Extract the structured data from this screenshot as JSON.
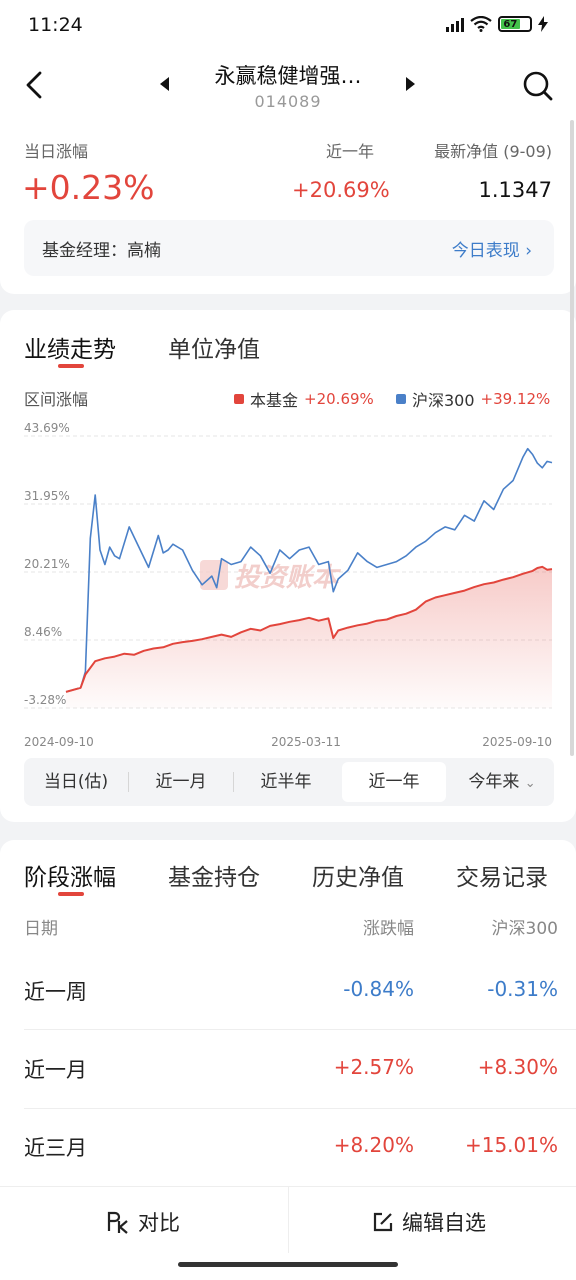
{
  "status_bar": {
    "time": "11:24",
    "battery": "67"
  },
  "header": {
    "title": "永赢稳健增强…",
    "code": "014089"
  },
  "summary": {
    "daily_change_label": "当日涨幅",
    "daily_change": "+0.23%",
    "year_label": "近一年",
    "year_change": "+20.69%",
    "nav_label": "最新净值 (9-09)",
    "nav": "1.1347",
    "manager": "基金经理：高楠",
    "today_link": "今日表现"
  },
  "chart_section": {
    "tabs": [
      "业绩走势",
      "单位净值"
    ],
    "subtitle": "区间涨幅",
    "watermark": "投资账本",
    "range_buttons": [
      "当日(估)",
      "近一月",
      "近半年",
      "近一年",
      "今年来"
    ],
    "selected_range": "近一年"
  },
  "chart_data": {
    "type": "line",
    "y_ticks": [
      "43.69%",
      "31.95%",
      "20.21%",
      "8.46%",
      "-3.28%"
    ],
    "x_ticks": [
      "2024-09-10",
      "2025-03-11",
      "2025-09-10"
    ],
    "ylim": [
      -3.28,
      43.69
    ],
    "colors": {
      "fund": "#e2453c",
      "index": "#4a80c8"
    },
    "series": [
      {
        "name": "本基金",
        "label_value": "+20.69%",
        "x": [
          0,
          3,
          4,
          6,
          8,
          10,
          12,
          14,
          16,
          18,
          20,
          22,
          24,
          26,
          28,
          30,
          32,
          34,
          36,
          38,
          40,
          42,
          44,
          46,
          48,
          50,
          52,
          54,
          55,
          56,
          58,
          60,
          62,
          64,
          66,
          68,
          70,
          72,
          74,
          76,
          78,
          80,
          82,
          84,
          86,
          88,
          90,
          92,
          94,
          96,
          97,
          98,
          99,
          100
        ],
        "y": [
          -0.5,
          0.2,
          2.5,
          4.8,
          5.3,
          5.6,
          6.1,
          5.9,
          6.6,
          7.0,
          7.2,
          7.8,
          8.1,
          8.3,
          8.6,
          9.0,
          9.4,
          9.0,
          9.8,
          10.4,
          10.1,
          10.9,
          11.2,
          11.6,
          11.9,
          12.3,
          11.8,
          12.2,
          8.8,
          10.1,
          10.6,
          11.0,
          11.3,
          11.8,
          12.0,
          12.6,
          13.0,
          13.7,
          15.1,
          15.8,
          16.2,
          16.6,
          17.0,
          17.6,
          18.1,
          18.4,
          18.9,
          19.3,
          19.9,
          20.4,
          20.9,
          21.1,
          20.6,
          20.7
        ]
      },
      {
        "name": "沪深300",
        "label_value": "+39.12%",
        "x": [
          0,
          3,
          4,
          5,
          6,
          7,
          8,
          9,
          10,
          11,
          13,
          15,
          17,
          19,
          20,
          21,
          22,
          24,
          26,
          28,
          30,
          31,
          32,
          34,
          36,
          38,
          40,
          42,
          44,
          46,
          48,
          50,
          52,
          54,
          55,
          56,
          58,
          60,
          62,
          64,
          66,
          68,
          70,
          72,
          74,
          76,
          78,
          80,
          82,
          84,
          86,
          88,
          90,
          92,
          94,
          95,
          96,
          97,
          98,
          99,
          100
        ],
        "y": [
          -0.5,
          0.2,
          3.0,
          26.0,
          33.5,
          24.0,
          21.5,
          24.5,
          23.0,
          22.5,
          28.0,
          24.5,
          21.0,
          26.5,
          23.5,
          24.0,
          25.0,
          24.0,
          20.5,
          18.0,
          19.5,
          17.5,
          22.5,
          21.5,
          22.0,
          24.5,
          23.0,
          20.0,
          24.0,
          22.5,
          24.0,
          24.5,
          21.5,
          22.0,
          16.8,
          19.0,
          20.5,
          23.5,
          22.0,
          21.0,
          21.5,
          22.0,
          23.0,
          24.5,
          25.5,
          27.0,
          28.0,
          27.5,
          30.0,
          29.0,
          32.5,
          31.0,
          34.5,
          36.0,
          40.0,
          41.5,
          40.5,
          39.0,
          38.2,
          39.3,
          39.1
        ]
      }
    ]
  },
  "stage_section": {
    "tabs": [
      "阶段涨幅",
      "基金持仓",
      "历史净值",
      "交易记录"
    ],
    "col_headers": [
      "日期",
      "涨跌幅",
      "沪深300"
    ],
    "rows": [
      {
        "period": "近一周",
        "fund": "-0.84%",
        "index": "-0.31%"
      },
      {
        "period": "近一月",
        "fund": "+2.57%",
        "index": "+8.30%"
      },
      {
        "period": "近三月",
        "fund": "+8.20%",
        "index": "+15.01%"
      }
    ]
  },
  "bottom_bar": {
    "compare": "对比",
    "edit_watch": "编辑自选"
  }
}
